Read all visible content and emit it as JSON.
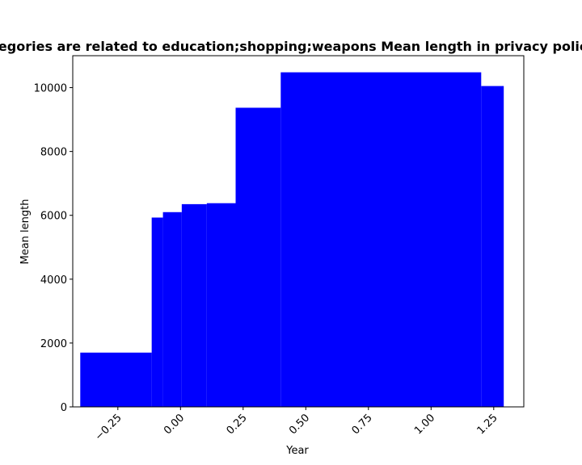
{
  "chart_data": {
    "type": "bar",
    "title": "Categories are related to education;shopping;weapons Mean length in privacy policies",
    "xlabel": "Year",
    "ylabel": "Mean length",
    "xlim": [
      -0.43,
      1.37
    ],
    "ylim": [
      0,
      11000
    ],
    "grid": false,
    "bar_color": "#0000ff",
    "x_ticks": [
      -0.25,
      0.0,
      0.25,
      0.5,
      0.75,
      1.0,
      1.25
    ],
    "x_tick_labels": [
      "−0.25",
      "0.00",
      "0.25",
      "0.50",
      "0.75",
      "1.00",
      "1.25"
    ],
    "y_ticks": [
      0,
      2000,
      4000,
      6000,
      8000,
      10000
    ],
    "y_tick_labels": [
      "0",
      "2000",
      "4000",
      "6000",
      "8000",
      "10000"
    ],
    "bars": [
      {
        "x0": -0.4,
        "x1": -0.115,
        "value": 1700
      },
      {
        "x0": -0.115,
        "x1": -0.07,
        "value": 5930
      },
      {
        "x0": -0.07,
        "x1": 0.005,
        "value": 6100
      },
      {
        "x0": 0.005,
        "x1": 0.105,
        "value": 6350
      },
      {
        "x0": 0.105,
        "x1": 0.22,
        "value": 6380
      },
      {
        "x0": 0.22,
        "x1": 0.4,
        "value": 9370
      },
      {
        "x0": 0.4,
        "x1": 1.2,
        "value": 10480
      },
      {
        "x0": 1.2,
        "x1": 1.29,
        "value": 10050
      }
    ]
  }
}
